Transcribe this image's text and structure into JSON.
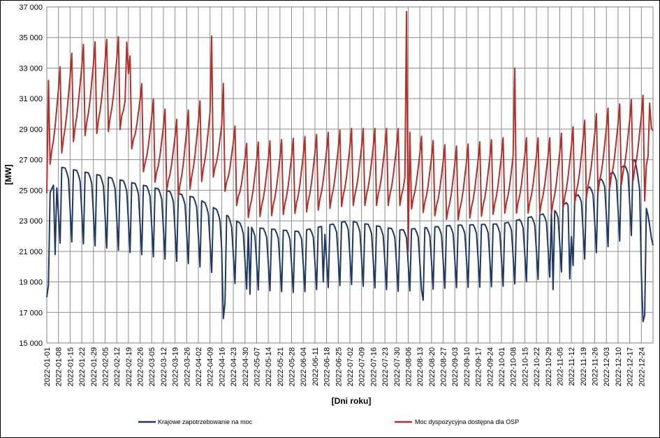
{
  "chart_data": {
    "type": "line",
    "title": "",
    "xlabel": "[Dni roku]",
    "ylabel": "[MW]",
    "ylim": [
      15000,
      37000
    ],
    "y_tick_labels": [
      "15 000",
      "17 000",
      "19 000",
      "21 000",
      "23 000",
      "25 000",
      "27 000",
      "29 000",
      "31 000",
      "33 000",
      "35 000",
      "37 000"
    ],
    "x_tick_labels": [
      "2022-01-01",
      "2022-01-08",
      "2022-01-15",
      "2022-01-22",
      "2022-01-29",
      "2022-02-05",
      "2022-02-12",
      "2022-02-19",
      "2022-02-26",
      "2022-03-05",
      "2022-03-12",
      "2022-03-19",
      "2022-03-26",
      "2022-04-02",
      "2022-04-09",
      "2022-04-16",
      "2022-04-23",
      "2022-04-30",
      "2022-05-07",
      "2022-05-14",
      "2022-05-21",
      "2022-05-28",
      "2022-06-04",
      "2022-06-11",
      "2022-06-18",
      "2022-06-25",
      "2022-07-02",
      "2022-07-09",
      "2022-07-16",
      "2022-07-23",
      "2022-07-30",
      "2022-08-06",
      "2022-08-13",
      "2022-08-20",
      "2022-08-27",
      "2022-09-03",
      "2022-09-10",
      "2022-09-17",
      "2022-09-24",
      "2022-10-01",
      "2022-10-08",
      "2022-10-15",
      "2022-10-22",
      "2022-10-29",
      "2022-11-05",
      "2022-11-12",
      "2022-11-19",
      "2022-11-26",
      "2022-12-03",
      "2022-12-10",
      "2022-12-17",
      "2022-12-24"
    ],
    "grid": true,
    "legend_position": "bottom",
    "x_start": "2022-01-01",
    "x_end": "2022-12-31",
    "series": [
      {
        "name": "Krajowe zapotrzebowanie na moc",
        "color": "#1f3864",
        "weekly_pattern": [
          1.0,
          1.0,
          1.0,
          0.99,
          0.975,
          0.9,
          0.82
        ],
        "weekday_level": [
          {
            "date": "2022-01-01",
            "value": 24400
          },
          {
            "date": "2022-01-10",
            "value": 26500
          },
          {
            "date": "2022-02-01",
            "value": 26000
          },
          {
            "date": "2022-03-01",
            "value": 25300
          },
          {
            "date": "2022-04-01",
            "value": 24500
          },
          {
            "date": "2022-05-01",
            "value": 22600
          },
          {
            "date": "2022-06-01",
            "value": 22300
          },
          {
            "date": "2022-07-01",
            "value": 23000
          },
          {
            "date": "2022-08-01",
            "value": 22400
          },
          {
            "date": "2022-09-01",
            "value": 22700
          },
          {
            "date": "2022-10-01",
            "value": 22800
          },
          {
            "date": "2022-11-01",
            "value": 23600
          },
          {
            "date": "2022-12-01",
            "value": 25800
          },
          {
            "date": "2022-12-20",
            "value": 27000
          },
          {
            "date": "2022-12-31",
            "value": 22000
          }
        ],
        "overrides": [
          {
            "date": "2022-01-01",
            "value": 18000
          },
          {
            "date": "2022-01-02",
            "value": 18800
          },
          {
            "date": "2022-01-06",
            "value": 20800
          },
          {
            "date": "2022-04-17",
            "value": 16600
          },
          {
            "date": "2022-04-18",
            "value": 17600
          },
          {
            "date": "2022-05-03",
            "value": 18200
          },
          {
            "date": "2022-06-16",
            "value": 19000
          },
          {
            "date": "2022-08-15",
            "value": 17800
          },
          {
            "date": "2022-11-01",
            "value": 18500
          },
          {
            "date": "2022-11-11",
            "value": 19200
          },
          {
            "date": "2022-12-24",
            "value": 19600
          },
          {
            "date": "2022-12-25",
            "value": 16400
          },
          {
            "date": "2022-12-26",
            "value": 16800
          },
          {
            "date": "2022-12-31",
            "value": 21400
          }
        ]
      },
      {
        "name": "Moc dyspozycyjna dostępna dla OSP",
        "color": "#b2312b",
        "weekly_pattern": [
          1.0,
          1.03,
          1.05,
          1.08,
          1.12,
          1.16,
          1.21
        ],
        "weekday_level": [
          {
            "date": "2022-01-01",
            "value": 26500
          },
          {
            "date": "2022-01-20",
            "value": 28500
          },
          {
            "date": "2022-02-15",
            "value": 29000
          },
          {
            "date": "2022-03-01",
            "value": 26000
          },
          {
            "date": "2022-03-20",
            "value": 24500
          },
          {
            "date": "2022-04-10",
            "value": 26000
          },
          {
            "date": "2022-05-01",
            "value": 23200
          },
          {
            "date": "2022-06-01",
            "value": 23500
          },
          {
            "date": "2022-07-01",
            "value": 24000
          },
          {
            "date": "2022-08-01",
            "value": 24000
          },
          {
            "date": "2022-09-01",
            "value": 23000
          },
          {
            "date": "2022-10-01",
            "value": 23500
          },
          {
            "date": "2022-11-01",
            "value": 23500
          },
          {
            "date": "2022-12-01",
            "value": 25000
          },
          {
            "date": "2022-12-31",
            "value": 26000
          }
        ],
        "overrides": [
          {
            "date": "2022-01-01",
            "value": 24800
          },
          {
            "date": "2022-02-18",
            "value": 34700
          },
          {
            "date": "2022-04-10",
            "value": 35100
          },
          {
            "date": "2022-04-17",
            "value": 32000
          },
          {
            "date": "2022-08-05",
            "value": 36700
          },
          {
            "date": "2022-08-06",
            "value": 21000
          },
          {
            "date": "2022-10-09",
            "value": 33000
          },
          {
            "date": "2022-12-26",
            "value": 24300
          },
          {
            "date": "2022-12-29",
            "value": 30700
          },
          {
            "date": "2022-12-31",
            "value": 28900
          }
        ]
      }
    ]
  }
}
